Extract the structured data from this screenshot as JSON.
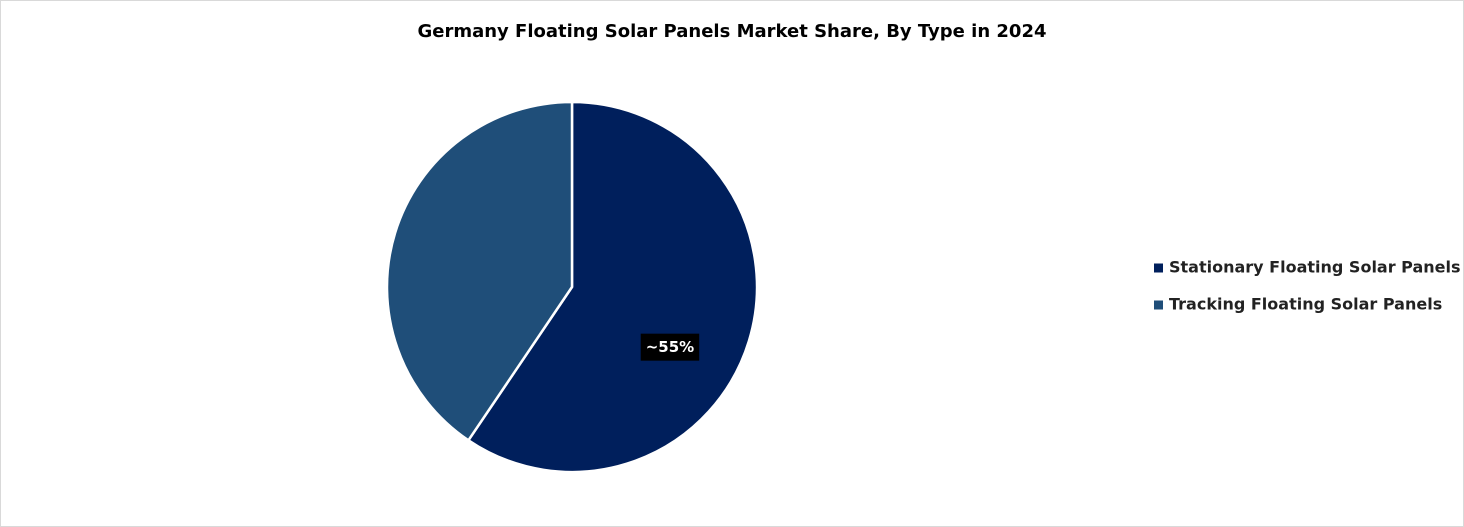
{
  "chart_data": {
    "type": "pie",
    "title": "Germany Floating Solar Panels Market Share, By Type in 2024",
    "categories": [
      "Stationary Floating Solar Panels",
      "Tracking Floating Solar Panels"
    ],
    "values": [
      55,
      37.5
    ],
    "value_labels": [
      "~55%",
      null
    ],
    "colors": [
      "#001f5c",
      "#1f4e79"
    ],
    "legend": "right"
  }
}
